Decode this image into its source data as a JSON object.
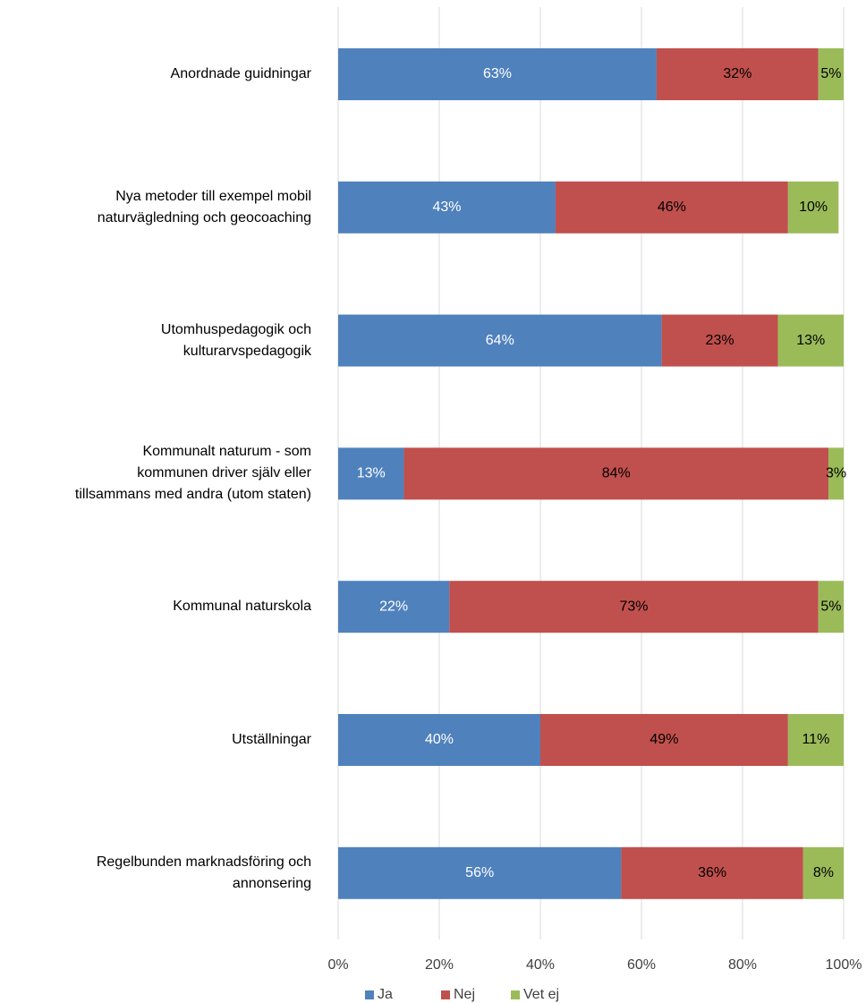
{
  "chart_data": {
    "type": "stacked_barh",
    "categories": [
      "Anordnade guidningar",
      "Nya metoder till exempel mobil\nnaturvägledning och geocoaching",
      "Utomhuspedagogik och\nkulturarvspedagogik",
      "Kommunalt naturum - som\nkommunen driver själv eller\ntillsammans med andra (utom staten)",
      "Kommunal naturskola",
      "Utställningar",
      "Regelbunden marknadsföring och\nannonsering"
    ],
    "series": [
      {
        "name": "Ja",
        "color": "#4f81bd",
        "values": [
          63,
          43,
          64,
          13,
          22,
          40,
          56
        ],
        "value_labels": [
          "63%",
          "43%",
          "64%",
          "13%",
          "22%",
          "40%",
          "56%"
        ]
      },
      {
        "name": "Nej",
        "color": "#c0504d",
        "values": [
          32,
          46,
          23,
          84,
          73,
          49,
          36
        ],
        "value_labels": [
          "32%",
          "46%",
          "23%",
          "84%",
          "73%",
          "49%",
          "36%"
        ]
      },
      {
        "name": "Vet ej",
        "color": "#9bbb59",
        "values": [
          5,
          10,
          13,
          3,
          5,
          11,
          8
        ],
        "value_labels": [
          "5%",
          "10%",
          "13%",
          "3%",
          "5%",
          "11%",
          "8%"
        ]
      }
    ],
    "xlim": [
      0,
      100
    ],
    "xticks": [
      {
        "value": 0,
        "label": "0%"
      },
      {
        "value": 20,
        "label": "20%"
      },
      {
        "value": 40,
        "label": "40%"
      },
      {
        "value": 60,
        "label": "60%"
      },
      {
        "value": 80,
        "label": "80%"
      },
      {
        "value": 100,
        "label": "100%"
      }
    ],
    "grid": true,
    "legend": "bottom"
  }
}
